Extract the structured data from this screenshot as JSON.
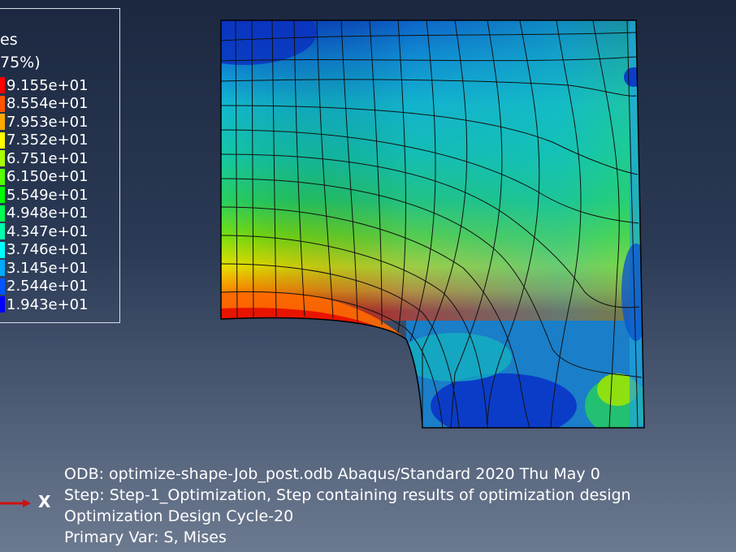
{
  "legend": {
    "title_line1": "es",
    "title_line2": "75%)",
    "values": [
      "9.155e+01",
      "8.554e+01",
      "7.953e+01",
      "7.352e+01",
      "6.751e+01",
      "6.150e+01",
      "5.549e+01",
      "4.948e+01",
      "4.347e+01",
      "3.746e+01",
      "3.145e+01",
      "2.544e+01",
      "1.943e+01"
    ],
    "colors": [
      "#ff0000",
      "#ff5500",
      "#ffaa00",
      "#ffff00",
      "#aaff00",
      "#55ff00",
      "#00ff00",
      "#00ff55",
      "#00ffaa",
      "#00ffff",
      "#00aaff",
      "#0055ff",
      "#0000ff"
    ]
  },
  "info": {
    "line1": "ODB: optimize-shape-Job_post.odb    Abaqus/Standard 2020    Thu May 0",
    "line2": "Step: Step-1_Optimization, Step containing results of optimization design",
    "line3": "Optimization Design Cycle-20",
    "line4": "Primary Var: S, Mises"
  },
  "triad": {
    "x_label": "X"
  }
}
